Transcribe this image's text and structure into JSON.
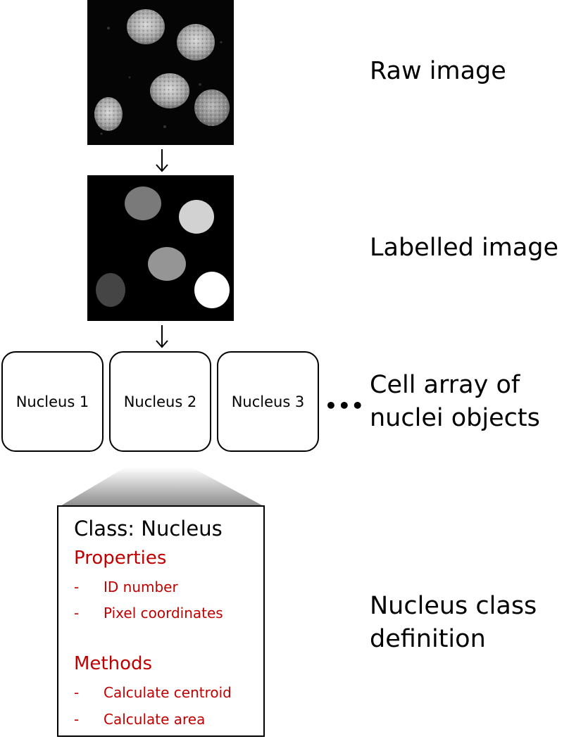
{
  "labels": {
    "raw": "Raw image",
    "labelled": "Labelled image",
    "cell_array_line1": "Cell array of",
    "cell_array_line2": "nuclei objects",
    "class_def_line1": "Nucleus class",
    "class_def_line2": "definition"
  },
  "arrows": {
    "glyph": "↓"
  },
  "nuclei": [
    {
      "label": "Nucleus 1"
    },
    {
      "label": "Nucleus 2"
    },
    {
      "label": "Nucleus 3"
    }
  ],
  "ellipsis": "•••",
  "class_box": {
    "title": "Class: Nucleus",
    "properties_title": "Properties",
    "properties": [
      "ID number",
      "Pixel coordinates"
    ],
    "methods_title": "Methods",
    "methods": [
      "Calculate centroid",
      "Calculate area"
    ],
    "dash": "-"
  },
  "colors": {
    "accent_red": "#c00000",
    "background": "#ffffff",
    "image_bg": "#000000"
  }
}
